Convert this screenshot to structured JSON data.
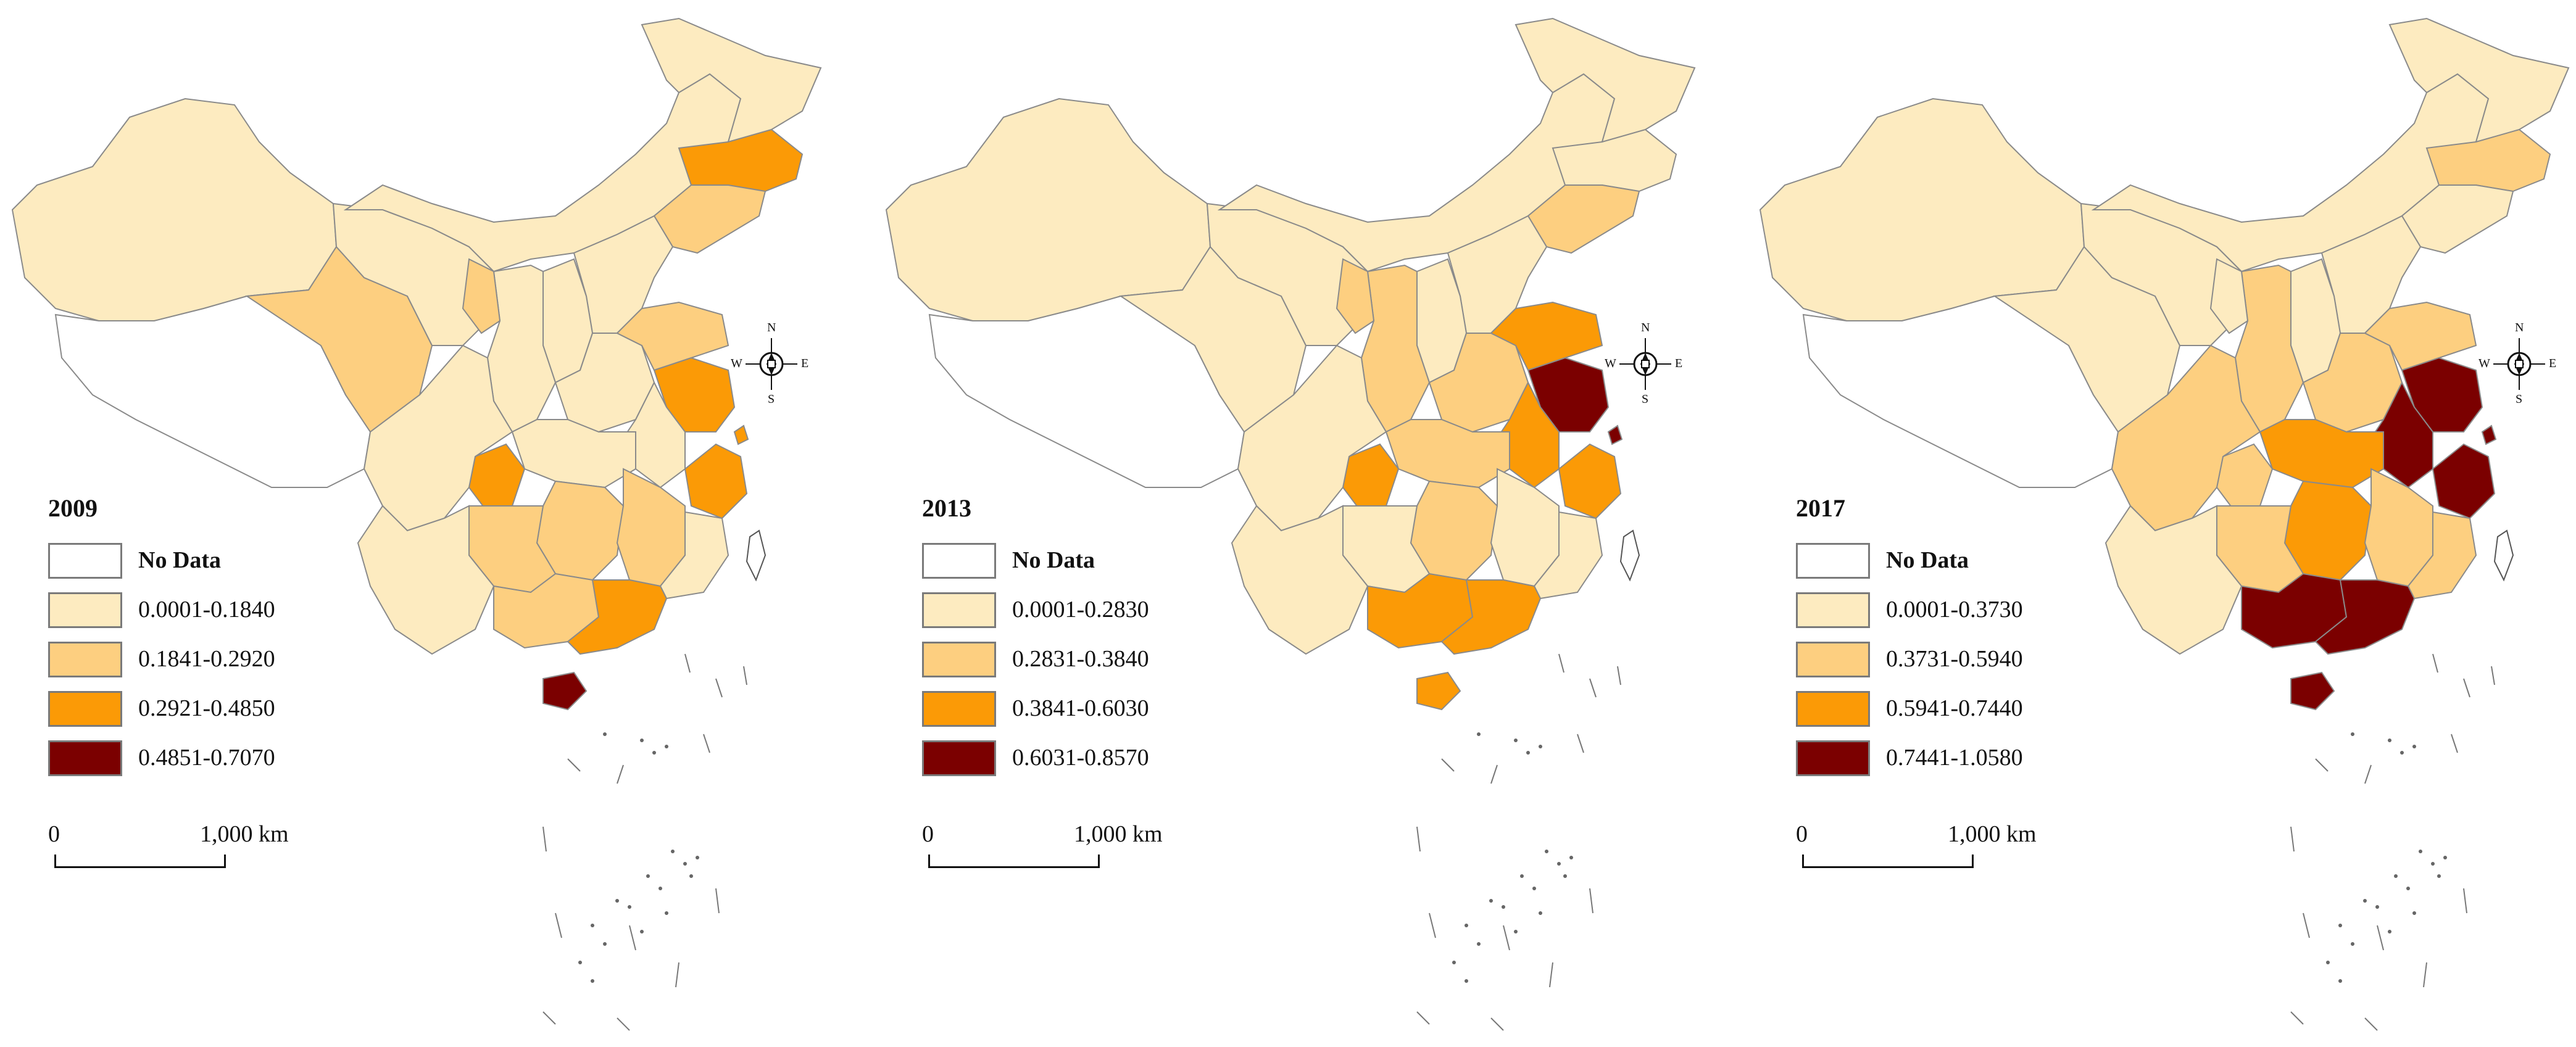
{
  "colors": {
    "no_data": "#ffffff",
    "class1": "#fdebc0",
    "class2": "#fdcf80",
    "class3": "#fb9a06",
    "class4": "#7b0000",
    "border": "#8a8a8a"
  },
  "compass_labels": {
    "n": "N",
    "s": "S",
    "e": "E",
    "w": "W"
  },
  "panels": [
    {
      "year": "2009",
      "legend": [
        "No Data",
        "0.0001-0.1840",
        "0.1841-0.2920",
        "0.2921-0.4850",
        "0.4851-0.7070"
      ],
      "scale": {
        "zero": "0",
        "max": "1,000 km"
      }
    },
    {
      "year": "2013",
      "legend": [
        "No Data",
        "0.0001-0.2830",
        "0.2831-0.3840",
        "0.3841-0.6030",
        "0.6031-0.8570"
      ],
      "scale": {
        "zero": "0",
        "max": "1,000 km"
      }
    },
    {
      "year": "2017",
      "legend": [
        "No Data",
        "0.0001-0.3730",
        "0.3731-0.5940",
        "0.5941-0.7440",
        "0.7441-1.0580"
      ],
      "scale": {
        "zero": "0",
        "max": "1,000 km"
      }
    }
  ],
  "region_classes": {
    "2009": {
      "xinjiang": 1,
      "tibet": 0,
      "qinghai": 2,
      "gansu": 1,
      "inner-mongolia": 1,
      "heilongjiang": 1,
      "jilin": 3,
      "liaoning": 2,
      "beijing": 4,
      "tianjin": 1,
      "hebei": 1,
      "shanxi": 1,
      "shaanxi": 1,
      "ningxia": 2,
      "henan": 1,
      "shandong": 2,
      "jiangsu": 3,
      "anhui": 1,
      "zhejiang": 3,
      "shanghai": 3,
      "hubei": 1,
      "sichuan": 1,
      "chongqing": 3,
      "hunan": 2,
      "jiangxi": 2,
      "fujian": 1,
      "guizhou": 2,
      "yunnan": 1,
      "guangxi": 2,
      "guangdong": 3,
      "hainan": 4
    },
    "2013": {
      "xinjiang": 1,
      "tibet": 0,
      "qinghai": 1,
      "gansu": 1,
      "inner-mongolia": 1,
      "heilongjiang": 1,
      "jilin": 1,
      "liaoning": 2,
      "beijing": 4,
      "tianjin": 1,
      "hebei": 1,
      "shanxi": 1,
      "shaanxi": 2,
      "ningxia": 2,
      "henan": 2,
      "shandong": 3,
      "jiangsu": 4,
      "anhui": 3,
      "zhejiang": 3,
      "shanghai": 4,
      "hubei": 2,
      "sichuan": 1,
      "chongqing": 3,
      "hunan": 2,
      "jiangxi": 1,
      "fujian": 1,
      "guizhou": 1,
      "yunnan": 1,
      "guangxi": 3,
      "guangdong": 3,
      "hainan": 3
    },
    "2017": {
      "xinjiang": 1,
      "tibet": 0,
      "qinghai": 1,
      "gansu": 1,
      "inner-mongolia": 1,
      "heilongjiang": 1,
      "jilin": 2,
      "liaoning": 1,
      "beijing": 3,
      "tianjin": 1,
      "hebei": 1,
      "shanxi": 1,
      "shaanxi": 2,
      "ningxia": 1,
      "henan": 2,
      "shandong": 2,
      "jiangsu": 4,
      "anhui": 4,
      "zhejiang": 4,
      "shanghai": 4,
      "hubei": 3,
      "sichuan": 2,
      "chongqing": 2,
      "hunan": 3,
      "jiangxi": 2,
      "fujian": 2,
      "guizhou": 2,
      "yunnan": 1,
      "guangxi": 4,
      "guangdong": 4,
      "hainan": 4
    }
  }
}
